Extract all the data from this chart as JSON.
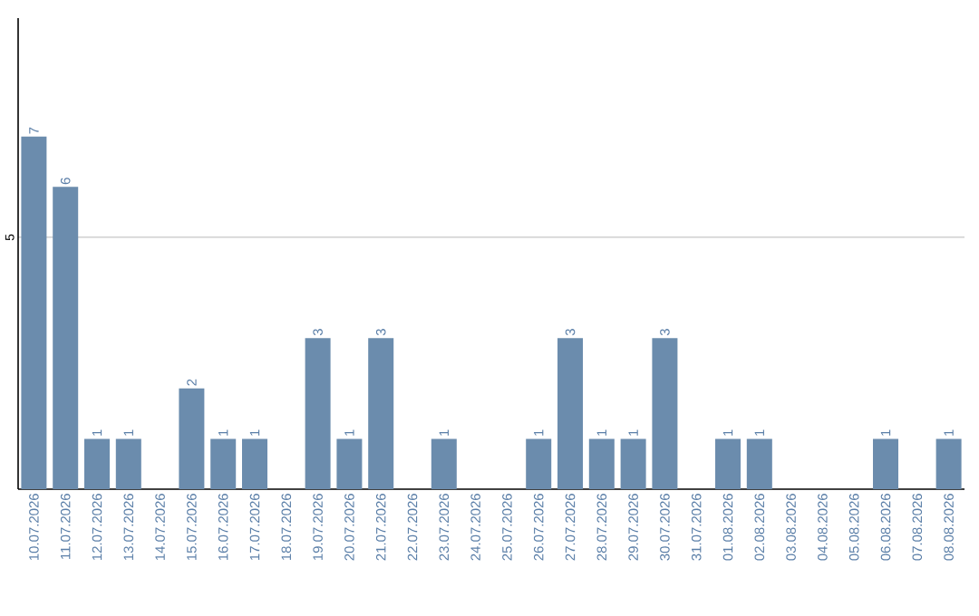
{
  "chart_data": {
    "type": "bar",
    "categories": [
      "10.07.2026",
      "11.07.2026",
      "12.07.2026",
      "13.07.2026",
      "14.07.2026",
      "15.07.2026",
      "16.07.2026",
      "17.07.2026",
      "18.07.2026",
      "19.07.2026",
      "20.07.2026",
      "21.07.2026",
      "22.07.2026",
      "23.07.2026",
      "24.07.2026",
      "25.07.2026",
      "26.07.2026",
      "27.07.2026",
      "28.07.2026",
      "29.07.2026",
      "30.07.2026",
      "31.07.2026",
      "01.08.2026",
      "02.08.2026",
      "03.08.2026",
      "04.08.2026",
      "05.08.2026",
      "06.08.2026",
      "07.08.2026",
      "08.08.2026"
    ],
    "values": [
      7,
      6,
      1,
      1,
      0,
      2,
      1,
      1,
      0,
      3,
      1,
      3,
      0,
      1,
      0,
      0,
      1,
      3,
      1,
      1,
      3,
      0,
      1,
      1,
      0,
      0,
      0,
      1,
      0,
      1
    ],
    "value_labels": [
      "7",
      "6",
      "1",
      "1",
      null,
      "2",
      "1",
      "1",
      null,
      "3",
      "1",
      "3",
      null,
      "1",
      null,
      null,
      "1",
      "3",
      "1",
      "1",
      "3",
      null,
      "1",
      "1",
      null,
      null,
      null,
      "1",
      null,
      "1"
    ],
    "color": "#6b8cad",
    "ylim": [
      0,
      9.35
    ],
    "yticks": [
      5
    ],
    "grid": "y"
  }
}
